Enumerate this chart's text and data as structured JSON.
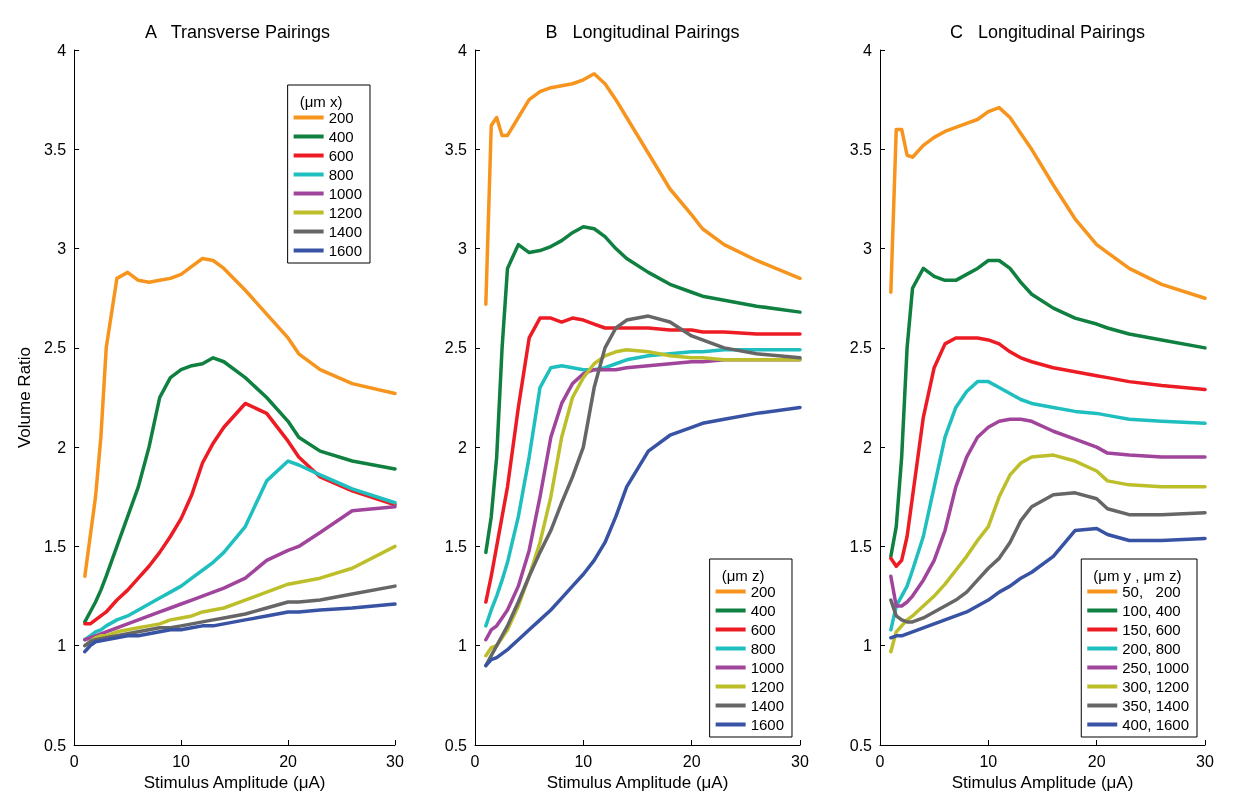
{
  "chart_data": [
    {
      "type": "line",
      "title": "A   Transverse Pairings",
      "xlabel": "Stimulus Amplitude (μA)",
      "ylabel": "Volume Ratio",
      "legend": "top right",
      "legend_title": "(μm x)",
      "xlim": [
        0,
        30
      ],
      "xticks": [
        0,
        10,
        20,
        30
      ],
      "ylim": [
        0.5,
        4
      ],
      "yticks": [
        0.5,
        1,
        1.5,
        2,
        2.5,
        3,
        3.5,
        4
      ],
      "x": [
        1,
        1.5,
        2,
        2.5,
        3,
        4,
        5,
        6,
        7,
        8,
        9,
        10,
        11,
        12,
        13,
        14,
        16,
        18,
        20,
        21,
        23,
        26,
        30
      ],
      "series": [
        {
          "name": "200",
          "color": "#f7941d",
          "values": [
            1.35,
            1.55,
            1.75,
            2.05,
            2.5,
            2.85,
            2.88,
            2.84,
            2.83,
            2.84,
            2.85,
            2.87,
            2.91,
            2.95,
            2.94,
            2.9,
            2.79,
            2.67,
            2.55,
            2.47,
            2.39,
            2.32,
            2.27
          ]
        },
        {
          "name": "400",
          "color": "#0f8040",
          "values": [
            1.12,
            1.17,
            1.22,
            1.28,
            1.35,
            1.5,
            1.65,
            1.8,
            2.0,
            2.25,
            2.35,
            2.39,
            2.41,
            2.42,
            2.45,
            2.43,
            2.35,
            2.25,
            2.13,
            2.05,
            1.98,
            1.93,
            1.89
          ]
        },
        {
          "name": "600",
          "color": "#ed1c24",
          "values": [
            1.11,
            1.11,
            1.13,
            1.15,
            1.17,
            1.23,
            1.28,
            1.34,
            1.4,
            1.47,
            1.55,
            1.64,
            1.76,
            1.92,
            2.02,
            2.1,
            2.22,
            2.17,
            2.03,
            1.95,
            1.85,
            1.78,
            1.71
          ]
        },
        {
          "name": "800",
          "color": "#1fbfbf",
          "values": [
            1.03,
            1.05,
            1.07,
            1.08,
            1.1,
            1.13,
            1.15,
            1.18,
            1.21,
            1.24,
            1.27,
            1.3,
            1.34,
            1.38,
            1.42,
            1.47,
            1.6,
            1.83,
            1.93,
            1.91,
            1.86,
            1.79,
            1.72
          ]
        },
        {
          "name": "1000",
          "color": "#a0449c",
          "values": [
            1.03,
            1.04,
            1.05,
            1.06,
            1.07,
            1.09,
            1.11,
            1.13,
            1.15,
            1.17,
            1.19,
            1.21,
            1.23,
            1.25,
            1.27,
            1.29,
            1.34,
            1.43,
            1.48,
            1.5,
            1.57,
            1.68,
            1.7
          ]
        },
        {
          "name": "1200",
          "color": "#bcbf2a",
          "values": [
            1.0,
            1.02,
            1.04,
            1.05,
            1.05,
            1.07,
            1.08,
            1.09,
            1.1,
            1.11,
            1.13,
            1.14,
            1.15,
            1.17,
            1.18,
            1.19,
            1.23,
            1.27,
            1.31,
            1.32,
            1.34,
            1.39,
            1.5
          ]
        },
        {
          "name": "1400",
          "color": "#666666",
          "values": [
            1.0,
            1.02,
            1.03,
            1.035,
            1.04,
            1.05,
            1.06,
            1.07,
            1.08,
            1.09,
            1.09,
            1.1,
            1.11,
            1.12,
            1.13,
            1.14,
            1.16,
            1.19,
            1.22,
            1.22,
            1.23,
            1.26,
            1.3
          ]
        },
        {
          "name": "1600",
          "color": "#3953a4",
          "values": [
            0.97,
            1.0,
            1.02,
            1.025,
            1.03,
            1.04,
            1.05,
            1.05,
            1.06,
            1.07,
            1.08,
            1.08,
            1.09,
            1.1,
            1.1,
            1.11,
            1.13,
            1.15,
            1.17,
            1.17,
            1.18,
            1.19,
            1.21
          ]
        }
      ]
    },
    {
      "type": "line",
      "title": "B   Longitudinal Pairings",
      "xlabel": "Stimulus Amplitude (μA)",
      "legend": "bottom right",
      "legend_title": "(μm z)",
      "xlim": [
        0,
        30
      ],
      "xticks": [
        0,
        10,
        20,
        30
      ],
      "ylim": [
        0.5,
        4
      ],
      "yticks": [
        0.5,
        1,
        1.5,
        2,
        2.5,
        3,
        3.5,
        4
      ],
      "x": [
        1,
        1.5,
        2,
        2.5,
        3,
        4,
        5,
        6,
        7,
        8,
        9,
        10,
        11,
        12,
        13,
        14,
        16,
        18,
        20,
        21,
        23,
        26,
        30
      ],
      "series": [
        {
          "name": "200",
          "color": "#f7941d",
          "values": [
            2.72,
            3.62,
            3.66,
            3.57,
            3.57,
            3.66,
            3.75,
            3.79,
            3.81,
            3.82,
            3.83,
            3.85,
            3.88,
            3.83,
            3.75,
            3.66,
            3.48,
            3.3,
            3.17,
            3.1,
            3.02,
            2.94,
            2.85
          ]
        },
        {
          "name": "400",
          "color": "#0f8040",
          "values": [
            1.47,
            1.65,
            1.95,
            2.5,
            2.9,
            3.02,
            2.98,
            2.99,
            3.01,
            3.04,
            3.08,
            3.11,
            3.1,
            3.06,
            3.0,
            2.95,
            2.88,
            2.82,
            2.78,
            2.76,
            2.74,
            2.71,
            2.68
          ]
        },
        {
          "name": "600",
          "color": "#ed1c24",
          "values": [
            1.22,
            1.35,
            1.5,
            1.65,
            1.8,
            2.2,
            2.55,
            2.65,
            2.65,
            2.63,
            2.65,
            2.64,
            2.62,
            2.6,
            2.6,
            2.6,
            2.6,
            2.59,
            2.59,
            2.58,
            2.58,
            2.57,
            2.57
          ]
        },
        {
          "name": "800",
          "color": "#1fbfbf",
          "values": [
            1.1,
            1.18,
            1.25,
            1.33,
            1.42,
            1.65,
            1.95,
            2.3,
            2.4,
            2.41,
            2.4,
            2.39,
            2.39,
            2.4,
            2.42,
            2.44,
            2.46,
            2.47,
            2.48,
            2.48,
            2.49,
            2.49,
            2.49
          ]
        },
        {
          "name": "1000",
          "color": "#a0449c",
          "values": [
            1.03,
            1.08,
            1.1,
            1.14,
            1.18,
            1.3,
            1.48,
            1.75,
            2.05,
            2.22,
            2.32,
            2.37,
            2.39,
            2.39,
            2.39,
            2.4,
            2.41,
            2.42,
            2.43,
            2.43,
            2.44,
            2.44,
            2.44
          ]
        },
        {
          "name": "1200",
          "color": "#bcbf2a",
          "values": [
            0.95,
            0.99,
            1.0,
            1.04,
            1.08,
            1.2,
            1.35,
            1.52,
            1.75,
            2.05,
            2.25,
            2.35,
            2.42,
            2.46,
            2.48,
            2.49,
            2.48,
            2.46,
            2.45,
            2.45,
            2.44,
            2.44,
            2.44
          ]
        },
        {
          "name": "1400",
          "color": "#666666",
          "values": [
            0.9,
            0.95,
            1.0,
            1.05,
            1.1,
            1.22,
            1.35,
            1.47,
            1.58,
            1.72,
            1.85,
            2.0,
            2.3,
            2.5,
            2.6,
            2.64,
            2.66,
            2.63,
            2.56,
            2.54,
            2.5,
            2.47,
            2.45
          ]
        },
        {
          "name": "1600",
          "color": "#3953a4",
          "values": [
            0.9,
            0.93,
            0.94,
            0.96,
            0.98,
            1.03,
            1.08,
            1.13,
            1.18,
            1.24,
            1.3,
            1.36,
            1.43,
            1.52,
            1.65,
            1.8,
            1.98,
            2.06,
            2.1,
            2.12,
            2.14,
            2.17,
            2.2
          ]
        }
      ]
    },
    {
      "type": "line",
      "title": "C   Longitudinal Pairings",
      "xlabel": "Stimulus Amplitude (μA)",
      "legend": "bottom right",
      "legend_title": "(μm y , μm z)",
      "xlim": [
        0,
        30
      ],
      "xticks": [
        0,
        10,
        20,
        30
      ],
      "ylim": [
        0.5,
        4
      ],
      "yticks": [
        0.5,
        1,
        1.5,
        2,
        2.5,
        3,
        3.5,
        4
      ],
      "x": [
        1,
        1.5,
        2,
        2.5,
        3,
        4,
        5,
        6,
        7,
        8,
        9,
        10,
        11,
        12,
        13,
        14,
        16,
        18,
        20,
        21,
        23,
        26,
        30
      ],
      "series": [
        {
          "name": "50,   200",
          "color": "#f7941d",
          "values": [
            2.78,
            3.6,
            3.6,
            3.47,
            3.46,
            3.52,
            3.56,
            3.59,
            3.61,
            3.63,
            3.65,
            3.69,
            3.71,
            3.66,
            3.58,
            3.5,
            3.32,
            3.15,
            3.02,
            2.98,
            2.9,
            2.82,
            2.75
          ]
        },
        {
          "name": "100, 400",
          "color": "#0f8040",
          "values": [
            1.45,
            1.6,
            1.95,
            2.5,
            2.8,
            2.9,
            2.86,
            2.84,
            2.84,
            2.87,
            2.9,
            2.94,
            2.94,
            2.9,
            2.83,
            2.77,
            2.7,
            2.65,
            2.62,
            2.6,
            2.57,
            2.54,
            2.5
          ]
        },
        {
          "name": "150, 600",
          "color": "#ed1c24",
          "values": [
            1.44,
            1.4,
            1.43,
            1.55,
            1.75,
            2.15,
            2.4,
            2.52,
            2.55,
            2.55,
            2.55,
            2.54,
            2.52,
            2.48,
            2.45,
            2.43,
            2.4,
            2.38,
            2.36,
            2.35,
            2.33,
            2.31,
            2.29
          ]
        },
        {
          "name": "200, 800",
          "color": "#1fbfbf",
          "values": [
            1.08,
            1.2,
            1.25,
            1.3,
            1.38,
            1.55,
            1.8,
            2.05,
            2.2,
            2.28,
            2.33,
            2.33,
            2.3,
            2.27,
            2.24,
            2.22,
            2.2,
            2.18,
            2.17,
            2.16,
            2.14,
            2.13,
            2.12
          ]
        },
        {
          "name": "250, 1000",
          "color": "#a0449c",
          "values": [
            1.35,
            1.2,
            1.2,
            1.22,
            1.25,
            1.33,
            1.43,
            1.58,
            1.8,
            1.95,
            2.05,
            2.1,
            2.13,
            2.14,
            2.14,
            2.13,
            2.08,
            2.04,
            2.0,
            1.97,
            1.96,
            1.95,
            1.95
          ]
        },
        {
          "name": "300, 1200",
          "color": "#bcbf2a",
          "values": [
            0.97,
            1.07,
            1.1,
            1.13,
            1.15,
            1.2,
            1.25,
            1.31,
            1.38,
            1.45,
            1.53,
            1.6,
            1.75,
            1.86,
            1.92,
            1.95,
            1.96,
            1.93,
            1.88,
            1.83,
            1.81,
            1.8,
            1.8
          ]
        },
        {
          "name": "350, 1400",
          "color": "#666666",
          "values": [
            1.23,
            1.15,
            1.13,
            1.12,
            1.12,
            1.14,
            1.17,
            1.2,
            1.23,
            1.27,
            1.33,
            1.39,
            1.44,
            1.52,
            1.63,
            1.7,
            1.76,
            1.77,
            1.74,
            1.69,
            1.66,
            1.66,
            1.67
          ]
        },
        {
          "name": "400, 1600",
          "color": "#3953a4",
          "values": [
            1.04,
            1.05,
            1.05,
            1.06,
            1.07,
            1.09,
            1.11,
            1.13,
            1.15,
            1.17,
            1.2,
            1.23,
            1.27,
            1.3,
            1.34,
            1.37,
            1.45,
            1.58,
            1.59,
            1.56,
            1.53,
            1.53,
            1.54
          ]
        }
      ]
    }
  ]
}
